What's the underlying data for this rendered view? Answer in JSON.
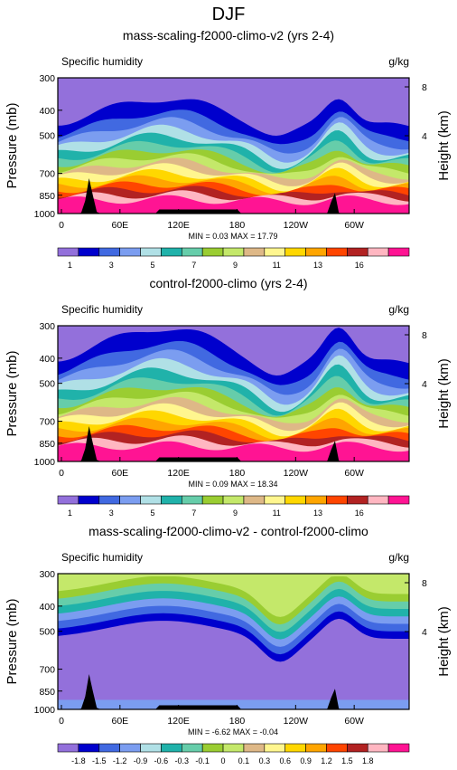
{
  "page_title": "DJF",
  "shared": {
    "left_label": "Specific humidity",
    "right_label": "g/kg",
    "ylabel": "Pressure (mb)",
    "y2label": "Height (km)",
    "pressure_ticks": [
      "300",
      "400",
      "500",
      "700",
      "850",
      "1000"
    ],
    "height_ticks": [
      "8",
      "4"
    ],
    "x_ticks": [
      "0",
      "60E",
      "120E",
      "180",
      "120W",
      "60W"
    ]
  },
  "panels": [
    {
      "title": "mass-scaling-f2000-climo-v2 (yrs 2-4)",
      "minmax": "MIN = 0.03  MAX = 17.79",
      "colorbar_labels": [
        "1",
        "",
        "3",
        "",
        "5",
        "",
        "7",
        "",
        "9",
        "",
        "11",
        "",
        "13",
        "",
        "16"
      ]
    },
    {
      "title": "control-f2000-climo (yrs 2-4)",
      "minmax": "MIN = 0.09  MAX = 18.34",
      "colorbar_labels": [
        "1",
        "",
        "3",
        "",
        "5",
        "",
        "7",
        "",
        "9",
        "",
        "11",
        "",
        "13",
        "",
        "16"
      ]
    },
    {
      "title": "mass-scaling-f2000-climo-v2 - control-f2000-climo",
      "minmax": "MIN = -6.62  MAX = -0.04",
      "colorbar_labels": [
        "-1.8",
        "-1.5",
        "-1.2",
        "-0.9",
        "-0.6",
        "-0.3",
        "-0.1",
        "0",
        "0.1",
        "0.3",
        "0.6",
        "0.9",
        "1.2",
        "1.5",
        "1.8"
      ]
    }
  ],
  "chart_data": [
    {
      "type": "heatmap",
      "title": "mass-scaling-f2000-climo-v2 (yrs 2-4)",
      "variable": "Specific humidity",
      "units": "g/kg",
      "xlabel": "",
      "ylabel": "Pressure (mb)",
      "y2label": "Height (km)",
      "x_ticks": [
        "0",
        "60E",
        "120E",
        "180",
        "120W",
        "60W"
      ],
      "y_ticks": [
        300,
        400,
        500,
        700,
        850,
        1000
      ],
      "min": 0.03,
      "max": 17.79,
      "levels": [
        1,
        2,
        3,
        4,
        5,
        6,
        7,
        8,
        9,
        10,
        11,
        12,
        13,
        14,
        16
      ],
      "colors": [
        "#9370db",
        "#0000cd",
        "#4169e1",
        "#7b9df0",
        "#b0e0e6",
        "#20b2aa",
        "#66cdaa",
        "#9acd32",
        "#c4e86a",
        "#deb887",
        "#fff68f",
        "#ffd700",
        "#ffa500",
        "#ff4500",
        "#b22222",
        "#ffb6c1",
        "#ff1493"
      ]
    },
    {
      "type": "heatmap",
      "title": "control-f2000-climo (yrs 2-4)",
      "variable": "Specific humidity",
      "units": "g/kg",
      "xlabel": "",
      "ylabel": "Pressure (mb)",
      "y2label": "Height (km)",
      "x_ticks": [
        "0",
        "60E",
        "120E",
        "180",
        "120W",
        "60W"
      ],
      "y_ticks": [
        300,
        400,
        500,
        700,
        850,
        1000
      ],
      "min": 0.09,
      "max": 18.34,
      "levels": [
        1,
        2,
        3,
        4,
        5,
        6,
        7,
        8,
        9,
        10,
        11,
        12,
        13,
        14,
        16
      ],
      "colors": [
        "#9370db",
        "#0000cd",
        "#4169e1",
        "#7b9df0",
        "#b0e0e6",
        "#20b2aa",
        "#66cdaa",
        "#9acd32",
        "#c4e86a",
        "#deb887",
        "#fff68f",
        "#ffd700",
        "#ffa500",
        "#ff4500",
        "#b22222",
        "#ffb6c1",
        "#ff1493"
      ]
    },
    {
      "type": "heatmap",
      "title": "mass-scaling-f2000-climo-v2 - control-f2000-climo",
      "variable": "Specific humidity",
      "units": "g/kg",
      "xlabel": "",
      "ylabel": "Pressure (mb)",
      "y2label": "Height (km)",
      "x_ticks": [
        "0",
        "60E",
        "120E",
        "180",
        "120W",
        "60W"
      ],
      "y_ticks": [
        300,
        400,
        500,
        700,
        850,
        1000
      ],
      "min": -6.62,
      "max": -0.04,
      "levels": [
        -1.8,
        -1.5,
        -1.2,
        -0.9,
        -0.6,
        -0.3,
        -0.1,
        0,
        0.1,
        0.3,
        0.6,
        0.9,
        1.2,
        1.5,
        1.8
      ],
      "colors": [
        "#9370db",
        "#0000cd",
        "#4169e1",
        "#7b9df0",
        "#b0e0e6",
        "#20b2aa",
        "#66cdaa",
        "#9acd32",
        "#c4e86a",
        "#deb887",
        "#fff68f",
        "#ffd700",
        "#ffa500",
        "#ff4500",
        "#b22222",
        "#ffb6c1",
        "#ff1493"
      ]
    }
  ]
}
